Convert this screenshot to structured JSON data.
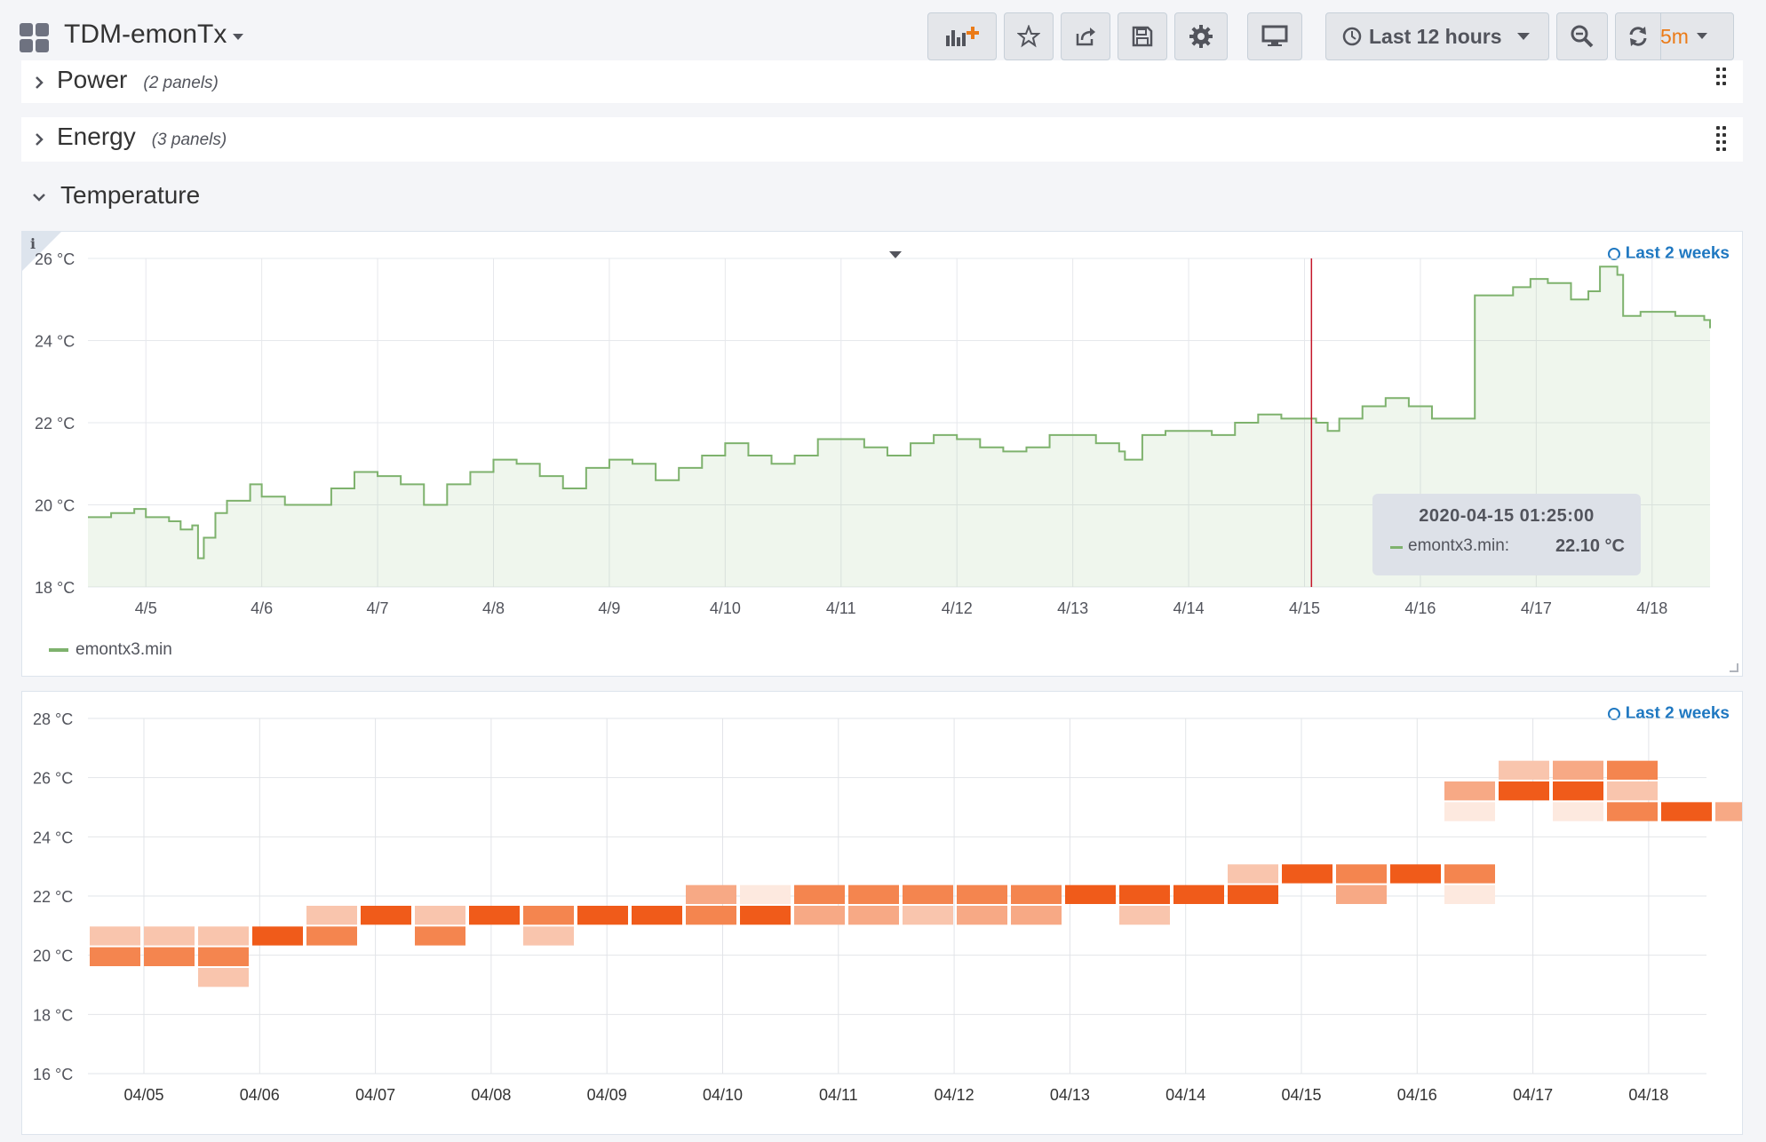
{
  "dashboard": {
    "title": "TDM-emonTx"
  },
  "toolbar": {
    "time_range_label": "Last 12 hours",
    "refresh_interval": "5m",
    "icons": [
      "add-panel-icon",
      "star-icon",
      "share-icon",
      "save-icon",
      "settings-icon",
      "tv-mode-icon",
      "clock-icon",
      "zoom-out-icon",
      "refresh-icon"
    ]
  },
  "rows": [
    {
      "title": "Power",
      "count": "(2 panels)"
    },
    {
      "title": "Energy",
      "count": "(3 panels)"
    }
  ],
  "section": {
    "title": "Temperature"
  },
  "graph_panel": {
    "time_override": "Last 2 weeks",
    "tooltip": {
      "time": "2020-04-15 01:25:00",
      "series": "emontx3.min:",
      "value": "22.10 °C"
    },
    "legend": [
      "emontx3.min"
    ]
  },
  "heatmap_panel": {
    "time_override": "Last 2 weeks"
  },
  "chart_data": [
    {
      "type": "line",
      "series": [
        {
          "name": "emontx3.min",
          "color": "#7eb26d"
        }
      ],
      "x": [
        4.5,
        4.7,
        4.9,
        5.0,
        5.2,
        5.3,
        5.4,
        5.45,
        5.5,
        5.6,
        5.7,
        5.9,
        6.0,
        6.2,
        6.4,
        6.6,
        6.8,
        7.0,
        7.2,
        7.4,
        7.6,
        7.8,
        8.0,
        8.2,
        8.4,
        8.6,
        8.8,
        9.0,
        9.2,
        9.4,
        9.6,
        9.8,
        10.0,
        10.2,
        10.4,
        10.6,
        10.8,
        11.0,
        11.2,
        11.4,
        11.6,
        11.8,
        12.0,
        12.2,
        12.4,
        12.6,
        12.8,
        13.0,
        13.2,
        13.4,
        13.45,
        13.6,
        13.8,
        14.0,
        14.2,
        14.4,
        14.6,
        14.8,
        15.0,
        15.1,
        15.2,
        15.3,
        15.5,
        15.7,
        15.9,
        16.1,
        16.45,
        16.47,
        16.6,
        16.8,
        16.95,
        17.1,
        17.3,
        17.45,
        17.55,
        17.7,
        17.75,
        17.9,
        18.2,
        18.45,
        18.5
      ],
      "y": [
        19.7,
        19.8,
        19.9,
        19.7,
        19.6,
        19.4,
        19.5,
        18.7,
        19.2,
        19.8,
        20.1,
        20.5,
        20.2,
        20.0,
        20.0,
        20.4,
        20.8,
        20.7,
        20.5,
        20.0,
        20.5,
        20.8,
        21.1,
        21.0,
        20.7,
        20.4,
        20.9,
        21.1,
        21.0,
        20.6,
        20.9,
        21.2,
        21.5,
        21.2,
        21.0,
        21.2,
        21.6,
        21.6,
        21.4,
        21.2,
        21.5,
        21.7,
        21.6,
        21.4,
        21.3,
        21.4,
        21.7,
        21.7,
        21.5,
        21.3,
        21.1,
        21.7,
        21.8,
        21.8,
        21.7,
        22.0,
        22.2,
        22.1,
        22.1,
        22.0,
        21.8,
        22.1,
        22.4,
        22.6,
        22.4,
        22.1,
        22.1,
        25.1,
        25.1,
        25.3,
        25.5,
        25.4,
        25.0,
        25.2,
        25.8,
        25.6,
        24.6,
        24.7,
        24.6,
        24.5,
        24.3
      ],
      "xticks": [
        "4/5",
        "4/6",
        "4/7",
        "4/8",
        "4/9",
        "4/10",
        "4/11",
        "4/12",
        "4/13",
        "4/14",
        "4/15",
        "4/16",
        "4/17",
        "4/18"
      ],
      "yticks": [
        "18 °C",
        "20 °C",
        "22 °C",
        "24 °C",
        "26 °C"
      ],
      "xlim": [
        4.5,
        18.5
      ],
      "ylim": [
        18,
        26
      ],
      "marker_x": 15.06,
      "grid": true,
      "legend": "bottom-left"
    },
    {
      "type": "heatmap",
      "xticks": [
        "04/05",
        "04/06",
        "04/07",
        "04/08",
        "04/09",
        "04/10",
        "04/11",
        "04/12",
        "04/13",
        "04/14",
        "04/15",
        "04/16",
        "04/17",
        "04/18"
      ],
      "yticks": [
        "16 °C",
        "18 °C",
        "20 °C",
        "22 °C",
        "24 °C",
        "26 °C",
        "28 °C"
      ],
      "ylim": [
        16,
        28
      ],
      "bucket_size": 0.7,
      "colors": [
        "#fde9df",
        "#f9c5ad",
        "#f7a985",
        "#f4854f",
        "#f05b1a"
      ],
      "cells": [
        {
          "d": 0,
          "b": 20.3,
          "i": 1
        },
        {
          "d": 0,
          "b": 19.6,
          "i": 3
        },
        {
          "d": 1,
          "b": 20.3,
          "i": 1
        },
        {
          "d": 1,
          "b": 19.6,
          "i": 3
        },
        {
          "d": 2,
          "b": 20.3,
          "i": 1
        },
        {
          "d": 2,
          "b": 19.6,
          "i": 3
        },
        {
          "d": 2,
          "b": 18.9,
          "i": 1
        },
        {
          "d": 3,
          "b": 20.3,
          "i": 4
        },
        {
          "d": 4,
          "b": 21.0,
          "i": 1
        },
        {
          "d": 4,
          "b": 20.3,
          "i": 3
        },
        {
          "d": 5,
          "b": 21.0,
          "i": 4
        },
        {
          "d": 6,
          "b": 21.0,
          "i": 1
        },
        {
          "d": 6,
          "b": 20.3,
          "i": 3
        },
        {
          "d": 7,
          "b": 21.0,
          "i": 4
        },
        {
          "d": 8,
          "b": 21.0,
          "i": 3
        },
        {
          "d": 8,
          "b": 20.3,
          "i": 1
        },
        {
          "d": 9,
          "b": 21.0,
          "i": 4
        },
        {
          "d": 10,
          "b": 21.0,
          "i": 4
        },
        {
          "d": 11,
          "b": 21.7,
          "i": 2
        },
        {
          "d": 11,
          "b": 21.0,
          "i": 3
        },
        {
          "d": 12,
          "b": 21.7,
          "i": 0
        },
        {
          "d": 12,
          "b": 21.0,
          "i": 4
        },
        {
          "d": 13,
          "b": 21.7,
          "i": 3
        },
        {
          "d": 13,
          "b": 21.0,
          "i": 2
        },
        {
          "d": 14,
          "b": 21.7,
          "i": 3
        },
        {
          "d": 14,
          "b": 21.0,
          "i": 2
        },
        {
          "d": 15,
          "b": 21.7,
          "i": 3
        },
        {
          "d": 15,
          "b": 21.0,
          "i": 1
        },
        {
          "d": 16,
          "b": 21.7,
          "i": 3
        },
        {
          "d": 16,
          "b": 21.0,
          "i": 2
        },
        {
          "d": 17,
          "b": 21.7,
          "i": 3
        },
        {
          "d": 17,
          "b": 21.0,
          "i": 2
        },
        {
          "d": 18,
          "b": 21.7,
          "i": 4
        },
        {
          "d": 19,
          "b": 21.7,
          "i": 4
        },
        {
          "d": 19,
          "b": 21.0,
          "i": 1
        },
        {
          "d": 20,
          "b": 21.7,
          "i": 4
        },
        {
          "d": 21,
          "b": 22.4,
          "i": 1
        },
        {
          "d": 21,
          "b": 21.7,
          "i": 4
        },
        {
          "d": 22,
          "b": 22.4,
          "i": 4
        },
        {
          "d": 23,
          "b": 22.4,
          "i": 3
        },
        {
          "d": 23,
          "b": 21.7,
          "i": 2
        },
        {
          "d": 24,
          "b": 22.4,
          "i": 4
        },
        {
          "d": 25,
          "b": 22.4,
          "i": 3
        },
        {
          "d": 25,
          "b": 21.7,
          "i": 0
        },
        {
          "d": 25,
          "b": 25.2,
          "i": 2
        },
        {
          "d": 25,
          "b": 24.5,
          "i": 0
        },
        {
          "d": 26,
          "b": 25.9,
          "i": 1
        },
        {
          "d": 26,
          "b": 25.2,
          "i": 4
        },
        {
          "d": 27,
          "b": 25.9,
          "i": 2
        },
        {
          "d": 27,
          "b": 25.2,
          "i": 4
        },
        {
          "d": 27,
          "b": 24.5,
          "i": 0
        },
        {
          "d": 28,
          "b": 25.9,
          "i": 3
        },
        {
          "d": 28,
          "b": 25.2,
          "i": 1
        },
        {
          "d": 28,
          "b": 24.5,
          "i": 3
        },
        {
          "d": 29,
          "b": 24.5,
          "i": 4
        },
        {
          "d": 30,
          "b": 24.5,
          "i": 2
        }
      ],
      "grid": true
    }
  ]
}
